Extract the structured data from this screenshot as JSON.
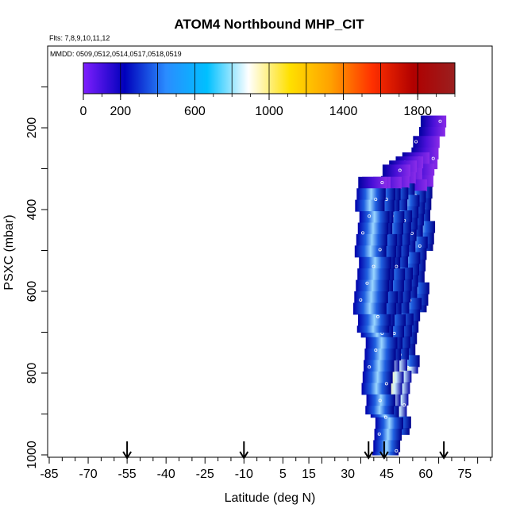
{
  "chart_data": {
    "type": "heatmap",
    "title": "ATOM4 Northbound MHP_CIT",
    "subtitle_flights": "Flts: 7,8,9,10,11,12",
    "subtitle_dates": "MMDD: 0509,0512,0514,0517,0518,0519",
    "xlabel": "Latitude (deg N)",
    "ylabel": "PSXC (mbar)",
    "xlim": [
      -85,
      85
    ],
    "ylim": [
      1000,
      0
    ],
    "x_tick_labels": [
      "-85",
      "-70",
      "-55",
      "-40",
      "-25",
      "-10",
      "5",
      "15",
      "30",
      "45",
      "60",
      "75"
    ],
    "y_tick_labels": [
      "200",
      "400",
      "600",
      "800",
      "1000"
    ],
    "y_tick_values": [
      200,
      400,
      600,
      800,
      1000
    ],
    "colorbar": {
      "range": [
        0,
        2000
      ],
      "tick_labels": [
        "0",
        "200",
        "600",
        "1000",
        "1400",
        "1800"
      ],
      "tick_values": [
        0,
        200,
        600,
        1000,
        1400,
        1800
      ],
      "colors": [
        "#7f1fff",
        "#0000bb",
        "#2a8cff",
        "#00c0ff",
        "#ffffff",
        "#ffe000",
        "#ffa000",
        "#ff3000",
        "#b00000",
        "#9a1f1f"
      ]
    },
    "flight_arrow_latitudes": [
      -55,
      -10,
      38,
      44,
      67
    ],
    "data_columns": [
      {
        "lat": 63.5,
        "p_top": 170,
        "p_bottom": 220,
        "mean": 150
      },
      {
        "lat": 60,
        "p_top": 220,
        "p_bottom": 300,
        "mean": 200
      },
      {
        "lat": 57,
        "p_top": 260,
        "p_bottom": 500,
        "mean": 300
      },
      {
        "lat": 54,
        "p_top": 270,
        "p_bottom": 650,
        "mean": 400
      },
      {
        "lat": 51,
        "p_top": 280,
        "p_bottom": 800,
        "mean": 600
      },
      {
        "lat": 48,
        "p_top": 290,
        "p_bottom": 950,
        "mean": 800
      },
      {
        "lat": 45,
        "p_top": 320,
        "p_bottom": 1000,
        "mean": 700
      },
      {
        "lat": 42,
        "p_top": 320,
        "p_bottom": 900,
        "mean": 500
      },
      {
        "lat": 39.5,
        "p_top": 320,
        "p_bottom": 700,
        "mean": 300
      }
    ]
  }
}
